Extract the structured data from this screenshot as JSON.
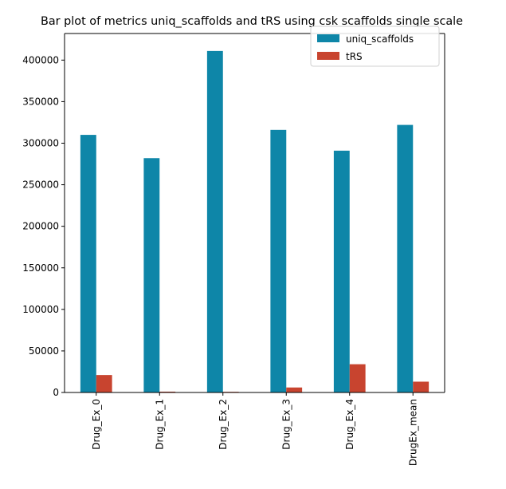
{
  "chart_data": {
    "type": "bar",
    "title": "Bar plot of metrics uniq_scaffolds and tRS using csk scaffolds single scale",
    "xlabel": "",
    "ylabel": "",
    "categories": [
      "Drug_Ex_0",
      "Drug_Ex_1",
      "Drug_Ex_2",
      "Drug_Ex_3",
      "Drug_Ex_4",
      "DrugEx_mean"
    ],
    "series": [
      {
        "name": "uniq_scaffolds",
        "color": "#0e86a8",
        "values": [
          310000,
          282000,
          411000,
          316000,
          291000,
          322000
        ]
      },
      {
        "name": "tRS",
        "color": "#c8442f",
        "values": [
          21000,
          1000,
          800,
          6000,
          34000,
          13000
        ]
      }
    ],
    "ylim": [
      0,
      432000
    ],
    "yticks": [
      0,
      50000,
      100000,
      150000,
      200000,
      250000,
      300000,
      350000,
      400000
    ],
    "ytick_labels": [
      "0",
      "50000",
      "100000",
      "150000",
      "200000",
      "250000",
      "300000",
      "350000",
      "400000"
    ],
    "grid": false,
    "legend_position": "top-right"
  }
}
